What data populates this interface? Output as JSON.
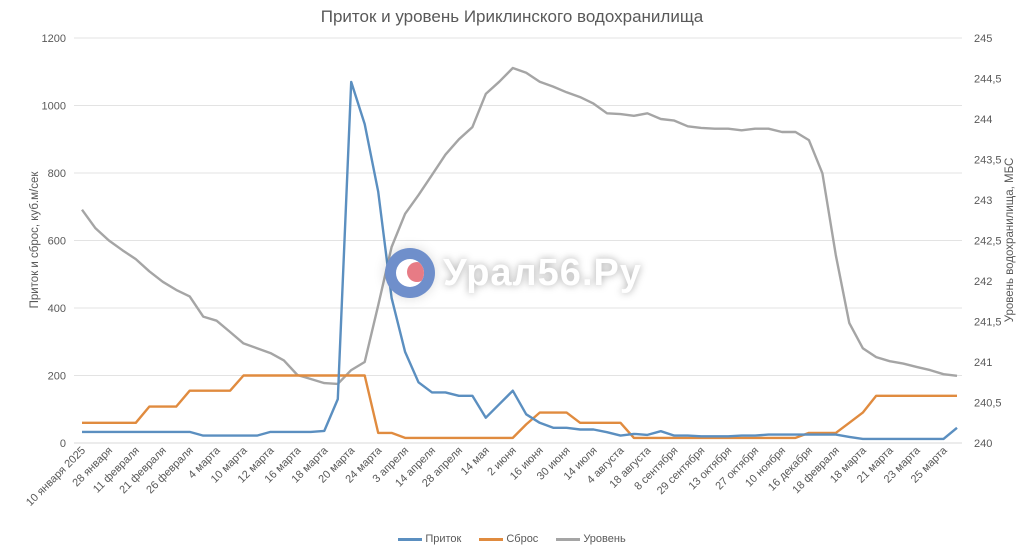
{
  "chart_data": {
    "type": "line",
    "title": "Приток и уровень Ириклинского водохранилища",
    "xlabel": "",
    "ylabel": "Приток и сброс, куб.м/сек",
    "ylabel_right": "Уровень водохранилища, МБС",
    "ylim": [
      0,
      1200
    ],
    "ylim_right": [
      240,
      245
    ],
    "yticks": [
      "0",
      "200",
      "400",
      "600",
      "800",
      "1000",
      "1200"
    ],
    "yticks_right": [
      "240",
      "240,5",
      "241",
      "241,5",
      "242",
      "242,5",
      "243",
      "243,5",
      "244",
      "244,5",
      "245"
    ],
    "grid": true,
    "legend_position": "bottom",
    "categories": [
      "10 января 2025",
      "28 января",
      "11 февраля",
      "21 февраля",
      "26 февраля",
      "4 марта",
      "10 марта",
      "12 марта",
      "16 марта",
      "18 марта",
      "20 марта",
      "24 марта",
      "3 апреля",
      "14 апреля",
      "28 апреля",
      "14 мая",
      "2 июня",
      "16 июня",
      "30 июня",
      "14 июля",
      "4 августа",
      "18 августа",
      "8 сентября",
      "29 сентября",
      "13 октября",
      "27 октября",
      "10 ноября",
      "16 декабря",
      "18 февраля",
      "18 марта",
      "21 марта",
      "23 марта",
      "25 марта"
    ],
    "points_per_category": 2,
    "series": [
      {
        "name": "Приток",
        "axis": "left",
        "color": "#5b8fc0",
        "values": [
          33,
          33,
          33,
          33,
          33,
          33,
          33,
          33,
          33,
          22,
          22,
          22,
          22,
          22,
          33,
          33,
          33,
          33,
          36,
          130,
          1070,
          945,
          745,
          430,
          270,
          180,
          150,
          150,
          140,
          140,
          75,
          115,
          155,
          85,
          60,
          45,
          45,
          40,
          40,
          32,
          22,
          27,
          24,
          35,
          22,
          22,
          20,
          20,
          20,
          22,
          22,
          25,
          25,
          25,
          25,
          25,
          25,
          18,
          12,
          12,
          12,
          12,
          12,
          12,
          12,
          45
        ]
      },
      {
        "name": "Сброс",
        "axis": "left",
        "color": "#e08b3f",
        "values": [
          60,
          60,
          60,
          60,
          60,
          108,
          108,
          108,
          155,
          155,
          155,
          155,
          200,
          200,
          200,
          200,
          200,
          200,
          200,
          200,
          200,
          200,
          30,
          30,
          15,
          15,
          15,
          15,
          15,
          15,
          15,
          15,
          15,
          55,
          90,
          90,
          90,
          60,
          60,
          60,
          60,
          15,
          15,
          15,
          15,
          15,
          15,
          15,
          15,
          15,
          15,
          15,
          15,
          15,
          30,
          30,
          30,
          60,
          90,
          140,
          140,
          140,
          140,
          140,
          140,
          140
        ]
      },
      {
        "name": "Уровень",
        "axis": "right",
        "color": "#a5a5a5",
        "values": [
          242.88,
          242.65,
          242.5,
          242.38,
          242.27,
          242.12,
          241.99,
          241.89,
          241.81,
          241.56,
          241.51,
          241.37,
          241.23,
          241.17,
          241.11,
          241.02,
          240.84,
          240.79,
          240.74,
          240.73,
          240.9,
          241.0,
          241.7,
          242.42,
          242.83,
          243.06,
          243.31,
          243.56,
          243.75,
          243.9,
          244.31,
          244.46,
          244.63,
          244.57,
          244.46,
          244.4,
          244.33,
          244.27,
          244.19,
          244.07,
          244.06,
          244.04,
          244.07,
          244.0,
          243.98,
          243.91,
          243.89,
          243.88,
          243.88,
          243.86,
          243.88,
          243.88,
          243.84,
          243.84,
          243.74,
          243.33,
          242.32,
          241.48,
          241.17,
          241.06,
          241.01,
          240.98,
          240.94,
          240.9,
          240.85,
          240.83
        ]
      }
    ]
  },
  "legend": {
    "items": [
      {
        "label": "Приток",
        "color": "#5b8fc0"
      },
      {
        "label": "Сброс",
        "color": "#e08b3f"
      },
      {
        "label": "Уровень",
        "color": "#a5a5a5"
      }
    ]
  },
  "watermark": {
    "text": "Урал56.Ру"
  }
}
